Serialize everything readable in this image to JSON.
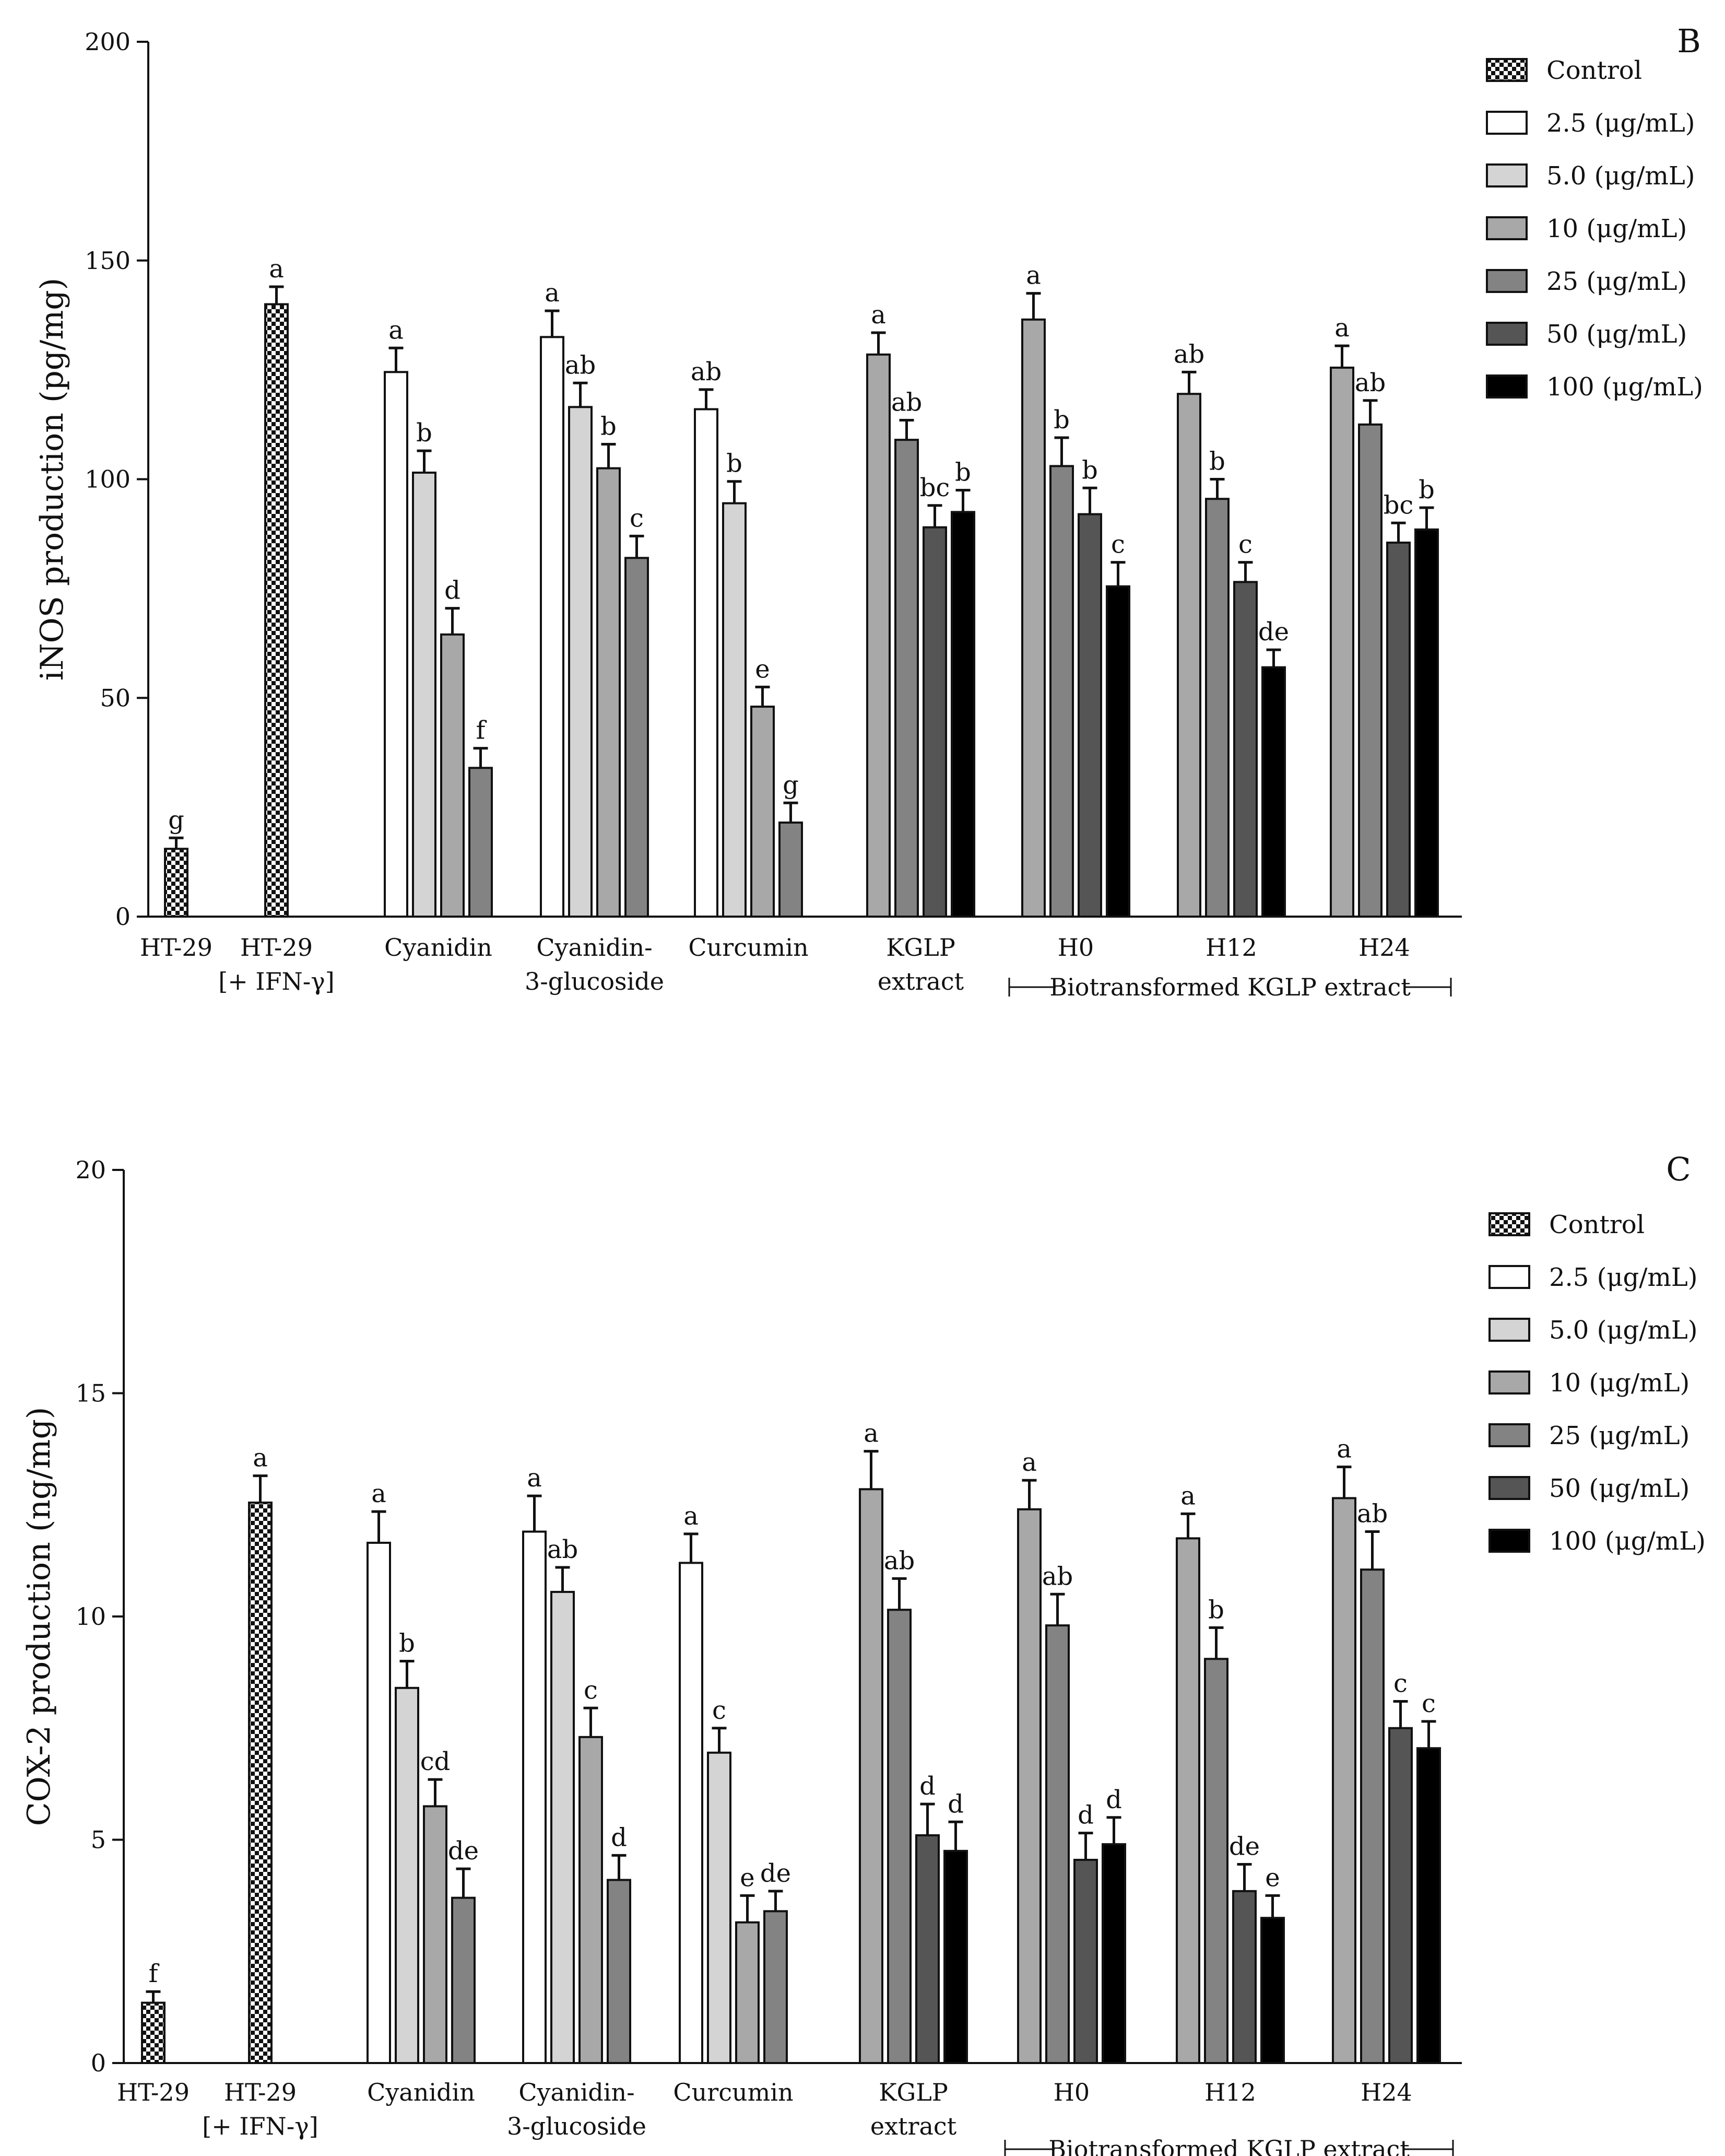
{
  "legend": {
    "items": [
      {
        "label": "Control",
        "pattern": "checker"
      },
      {
        "label": "2.5 (μg/mL)",
        "color": "#ffffff"
      },
      {
        "label": "5.0 (μg/mL)",
        "color": "#d4d4d4"
      },
      {
        "label": "10 (μg/mL)",
        "color": "#a8a8a8"
      },
      {
        "label": "25 (μg/mL)",
        "color": "#838383"
      },
      {
        "label": "50 (μg/mL)",
        "color": "#555555"
      },
      {
        "label": "100 (μg/mL)",
        "color": "#000000"
      }
    ]
  },
  "bracket_label": "Biotransformed KGLP extract",
  "chart_data": [
    {
      "type": "bar",
      "panel_letter": "B",
      "ylabel": "iNOS production (pg/mg)",
      "ylim": [
        0,
        200
      ],
      "yticks": [
        0,
        50,
        100,
        150,
        200
      ],
      "groups": [
        {
          "label": [
            "HT-29"
          ],
          "bars": [
            {
              "level": "Control",
              "value": 15.5,
              "error": 2.5,
              "letter": "g"
            }
          ]
        },
        {
          "label": [
            "HT-29",
            "[+ IFN-γ]"
          ],
          "bars": [
            {
              "level": "Control",
              "value": 140,
              "error": 4,
              "letter": "a"
            }
          ]
        },
        {
          "label": [
            "Cyanidin"
          ],
          "bars": [
            {
              "level": "2.5 (μg/mL)",
              "value": 124.5,
              "error": 5.5,
              "letter": "a"
            },
            {
              "level": "5.0 (μg/mL)",
              "value": 101.5,
              "error": 5,
              "letter": "b"
            },
            {
              "level": "10 (μg/mL)",
              "value": 64.5,
              "error": 6,
              "letter": "d"
            },
            {
              "level": "25 (μg/mL)",
              "value": 34,
              "error": 4.5,
              "letter": "f"
            }
          ]
        },
        {
          "label": [
            "Cyanidin-",
            "3-glucoside"
          ],
          "bars": [
            {
              "level": "2.5 (μg/mL)",
              "value": 132.5,
              "error": 6,
              "letter": "a"
            },
            {
              "level": "5.0 (μg/mL)",
              "value": 116.5,
              "error": 5.5,
              "letter": "ab"
            },
            {
              "level": "10 (μg/mL)",
              "value": 102.5,
              "error": 5.5,
              "letter": "b"
            },
            {
              "level": "25 (μg/mL)",
              "value": 82,
              "error": 5,
              "letter": "c"
            }
          ]
        },
        {
          "label": [
            "Curcumin"
          ],
          "bars": [
            {
              "level": "2.5 (μg/mL)",
              "value": 116,
              "error": 4.5,
              "letter": "ab"
            },
            {
              "level": "5.0 (μg/mL)",
              "value": 94.5,
              "error": 5,
              "letter": "b"
            },
            {
              "level": "10 (μg/mL)",
              "value": 48,
              "error": 4.5,
              "letter": "e"
            },
            {
              "level": "25 (μg/mL)",
              "value": 21.5,
              "error": 4.5,
              "letter": "g"
            }
          ]
        },
        {
          "label": [
            "KGLP",
            "extract"
          ],
          "bars": [
            {
              "level": "10 (μg/mL)",
              "value": 128.5,
              "error": 5,
              "letter": "a"
            },
            {
              "level": "25 (μg/mL)",
              "value": 109,
              "error": 4.5,
              "letter": "ab"
            },
            {
              "level": "50 (μg/mL)",
              "value": 89,
              "error": 5,
              "letter": "bc"
            },
            {
              "level": "100 (μg/mL)",
              "value": 92.5,
              "error": 5,
              "letter": "b"
            }
          ]
        },
        {
          "label": [
            "H0"
          ],
          "bars": [
            {
              "level": "10 (μg/mL)",
              "value": 136.5,
              "error": 6,
              "letter": "a"
            },
            {
              "level": "25 (μg/mL)",
              "value": 103,
              "error": 6.5,
              "letter": "b"
            },
            {
              "level": "50 (μg/mL)",
              "value": 92,
              "error": 6,
              "letter": "b"
            },
            {
              "level": "100 (μg/mL)",
              "value": 75.5,
              "error": 5.5,
              "letter": "c"
            }
          ]
        },
        {
          "label": [
            "H12"
          ],
          "bars": [
            {
              "level": "10 (μg/mL)",
              "value": 119.5,
              "error": 5,
              "letter": "ab"
            },
            {
              "level": "25 (μg/mL)",
              "value": 95.5,
              "error": 4.5,
              "letter": "b"
            },
            {
              "level": "50 (μg/mL)",
              "value": 76.5,
              "error": 4.5,
              "letter": "c"
            },
            {
              "level": "100 (μg/mL)",
              "value": 57,
              "error": 4,
              "letter": "de"
            }
          ]
        },
        {
          "label": [
            "H24"
          ],
          "bars": [
            {
              "level": "10 (μg/mL)",
              "value": 125.5,
              "error": 5,
              "letter": "a"
            },
            {
              "level": "25 (μg/mL)",
              "value": 112.5,
              "error": 5.5,
              "letter": "ab"
            },
            {
              "level": "50 (μg/mL)",
              "value": 85.5,
              "error": 4.5,
              "letter": "bc"
            },
            {
              "level": "100 (μg/mL)",
              "value": 88.5,
              "error": 5,
              "letter": "b"
            }
          ]
        }
      ]
    },
    {
      "type": "bar",
      "panel_letter": "C",
      "ylabel": "COX-2 production (ng/mg)",
      "ylim": [
        0,
        20
      ],
      "yticks": [
        0,
        5,
        10,
        15,
        20
      ],
      "groups": [
        {
          "label": [
            "HT-29"
          ],
          "bars": [
            {
              "level": "Control",
              "value": 1.35,
              "error": 0.25,
              "letter": "f"
            }
          ]
        },
        {
          "label": [
            "HT-29",
            "[+ IFN-γ]"
          ],
          "bars": [
            {
              "level": "Control",
              "value": 12.55,
              "error": 0.6,
              "letter": "a"
            }
          ]
        },
        {
          "label": [
            "Cyanidin"
          ],
          "bars": [
            {
              "level": "2.5 (μg/mL)",
              "value": 11.65,
              "error": 0.7,
              "letter": "a"
            },
            {
              "level": "5.0 (μg/mL)",
              "value": 8.4,
              "error": 0.6,
              "letter": "b"
            },
            {
              "level": "10 (μg/mL)",
              "value": 5.75,
              "error": 0.6,
              "letter": "cd"
            },
            {
              "level": "25 (μg/mL)",
              "value": 3.7,
              "error": 0.65,
              "letter": "de"
            }
          ]
        },
        {
          "label": [
            "Cyanidin-",
            "3-glucoside"
          ],
          "bars": [
            {
              "level": "2.5 (μg/mL)",
              "value": 11.9,
              "error": 0.8,
              "letter": "a"
            },
            {
              "level": "5.0 (μg/mL)",
              "value": 10.55,
              "error": 0.55,
              "letter": "ab"
            },
            {
              "level": "10 (μg/mL)",
              "value": 7.3,
              "error": 0.65,
              "letter": "c"
            },
            {
              "level": "25 (μg/mL)",
              "value": 4.1,
              "error": 0.55,
              "letter": "d"
            }
          ]
        },
        {
          "label": [
            "Curcumin"
          ],
          "bars": [
            {
              "level": "2.5 (μg/mL)",
              "value": 11.2,
              "error": 0.65,
              "letter": "a"
            },
            {
              "level": "5.0 (μg/mL)",
              "value": 6.95,
              "error": 0.55,
              "letter": "c"
            },
            {
              "level": "10 (μg/mL)",
              "value": 3.15,
              "error": 0.6,
              "letter": "e"
            },
            {
              "level": "25 (μg/mL)",
              "value": 3.4,
              "error": 0.45,
              "letter": "de"
            }
          ]
        },
        {
          "label": [
            "KGLP",
            "extract"
          ],
          "bars": [
            {
              "level": "10 (μg/mL)",
              "value": 12.85,
              "error": 0.85,
              "letter": "a"
            },
            {
              "level": "25 (μg/mL)",
              "value": 10.15,
              "error": 0.7,
              "letter": "ab"
            },
            {
              "level": "50 (μg/mL)",
              "value": 5.1,
              "error": 0.7,
              "letter": "d"
            },
            {
              "level": "100 (μg/mL)",
              "value": 4.75,
              "error": 0.65,
              "letter": "d"
            }
          ]
        },
        {
          "label": [
            "H0"
          ],
          "bars": [
            {
              "level": "10 (μg/mL)",
              "value": 12.4,
              "error": 0.65,
              "letter": "a"
            },
            {
              "level": "25 (μg/mL)",
              "value": 9.8,
              "error": 0.7,
              "letter": "ab"
            },
            {
              "level": "50 (μg/mL)",
              "value": 4.55,
              "error": 0.6,
              "letter": "d"
            },
            {
              "level": "100 (μg/mL)",
              "value": 4.9,
              "error": 0.6,
              "letter": "d"
            }
          ]
        },
        {
          "label": [
            "H12"
          ],
          "bars": [
            {
              "level": "10 (μg/mL)",
              "value": 11.75,
              "error": 0.55,
              "letter": "a"
            },
            {
              "level": "25 (μg/mL)",
              "value": 9.05,
              "error": 0.7,
              "letter": "b"
            },
            {
              "level": "50 (μg/mL)",
              "value": 3.85,
              "error": 0.6,
              "letter": "de"
            },
            {
              "level": "100 (μg/mL)",
              "value": 3.25,
              "error": 0.5,
              "letter": "e"
            }
          ]
        },
        {
          "label": [
            "H24"
          ],
          "bars": [
            {
              "level": "10 (μg/mL)",
              "value": 12.65,
              "error": 0.7,
              "letter": "a"
            },
            {
              "level": "25 (μg/mL)",
              "value": 11.05,
              "error": 0.85,
              "letter": "ab"
            },
            {
              "level": "50 (μg/mL)",
              "value": 7.5,
              "error": 0.6,
              "letter": "c"
            },
            {
              "level": "100 (μg/mL)",
              "value": 7.05,
              "error": 0.6,
              "letter": "c"
            }
          ]
        }
      ]
    }
  ]
}
